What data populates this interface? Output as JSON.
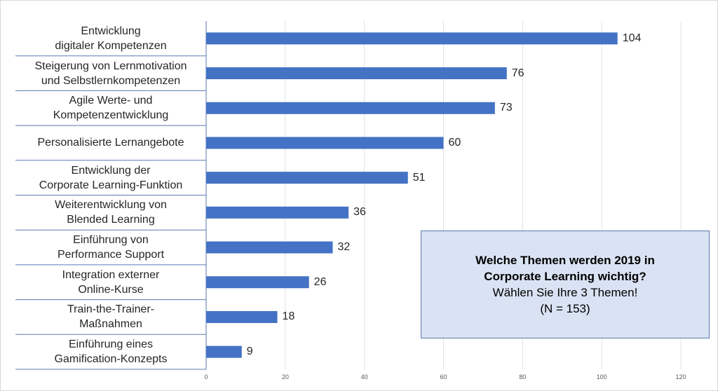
{
  "chart_data": {
    "type": "bar",
    "orientation": "horizontal",
    "categories": [
      "Entwicklung\ndigitaler Kompetenzen",
      "Steigerung von Lernmotivation\nund Selbstlernkompetenzen",
      "Agile Werte- und\nKompetenzentwicklung",
      "Personalisierte Lernangebote",
      "Entwicklung der\nCorporate Learning-Funktion",
      "Weiterentwicklung von\nBlended Learning",
      "Einführung von\nPerformance Support",
      "Integration externer\nOnline-Kurse",
      "Train-the-Trainer-\nMaßnahmen",
      "Einführung eines\nGamification-Konzepts"
    ],
    "values": [
      104,
      76,
      73,
      60,
      51,
      36,
      32,
      26,
      18,
      9
    ],
    "xlim": [
      0,
      120
    ],
    "xticks": [
      0,
      20,
      40,
      60,
      80,
      100,
      120
    ],
    "grid": true,
    "bar_color": "#4472c4",
    "title": "",
    "xlabel": "",
    "ylabel": ""
  },
  "infobox": {
    "line1": "Welche Themen werden 2019 in",
    "line2": "Corporate Learning wichtig?",
    "line3": "Wählen Sie Ihre 3 Themen!",
    "line4": "(N = 153)"
  }
}
